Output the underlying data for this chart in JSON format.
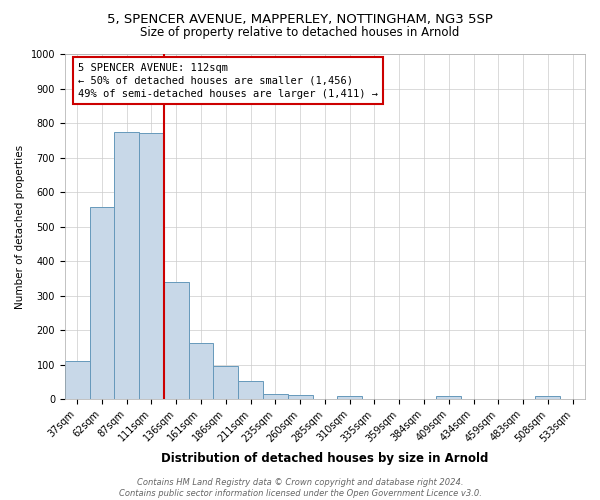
{
  "title1": "5, SPENCER AVENUE, MAPPERLEY, NOTTINGHAM, NG3 5SP",
  "title2": "Size of property relative to detached houses in Arnold",
  "xlabel": "Distribution of detached houses by size in Arnold",
  "ylabel": "Number of detached properties",
  "categories": [
    "37sqm",
    "62sqm",
    "87sqm",
    "111sqm",
    "136sqm",
    "161sqm",
    "186sqm",
    "211sqm",
    "235sqm",
    "260sqm",
    "285sqm",
    "310sqm",
    "335sqm",
    "359sqm",
    "384sqm",
    "409sqm",
    "434sqm",
    "459sqm",
    "483sqm",
    "508sqm",
    "533sqm"
  ],
  "values": [
    110,
    558,
    775,
    770,
    340,
    163,
    97,
    52,
    15,
    12,
    0,
    10,
    0,
    0,
    0,
    8,
    0,
    0,
    0,
    8,
    0
  ],
  "bar_color": "#c8d8e8",
  "bar_edge_color": "#6699bb",
  "marker_index": 3,
  "marker_color": "#cc0000",
  "annotation_line1": "5 SPENCER AVENUE: 112sqm",
  "annotation_line2": "← 50% of detached houses are smaller (1,456)",
  "annotation_line3": "49% of semi-detached houses are larger (1,411) →",
  "annotation_box_color": "#ffffff",
  "annotation_box_edge_color": "#cc0000",
  "ylim": [
    0,
    1000
  ],
  "yticks": [
    0,
    100,
    200,
    300,
    400,
    500,
    600,
    700,
    800,
    900,
    1000
  ],
  "footer1": "Contains HM Land Registry data © Crown copyright and database right 2024.",
  "footer2": "Contains public sector information licensed under the Open Government Licence v3.0.",
  "title1_fontsize": 9.5,
  "title2_fontsize": 8.5,
  "xlabel_fontsize": 8.5,
  "ylabel_fontsize": 7.5,
  "tick_fontsize": 7,
  "annotation_fontsize": 7.5,
  "footer_fontsize": 6,
  "grid_color": "#cccccc",
  "background_color": "#ffffff"
}
